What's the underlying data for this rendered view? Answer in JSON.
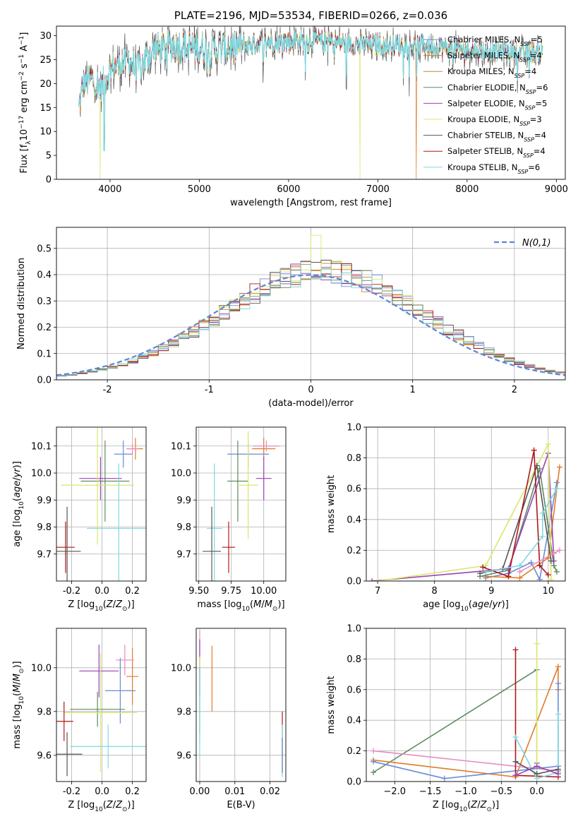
{
  "colors": {
    "Chabrier MILES": "#6a8bd6",
    "Salpeter MILES": "#e07b2a",
    "Kroupa MILES": "#b08c3a",
    "Chabrier ELODIE": "#5f8a62",
    "Salpeter ELODIE": "#9a42b8",
    "Kroupa ELODIE": "#d8e86a",
    "Chabrier STELIB": "#555555",
    "Salpeter STELIB": "#b01818",
    "Kroupa STELIB": "#7fd9e0",
    "Extra pink": "#e88ac0",
    "Normal": "#5b86d6"
  },
  "chart_data": [
    {
      "id": "spectrum",
      "type": "line",
      "title": "PLATE=2196, MJD=53534, FIBERID=0266, z=0.036",
      "xlabel": "wavelength [Angstrom, rest frame]",
      "ylabel": "Flux [f_λ10^-17 erg cm^-2 s^-1 A^-1]",
      "xlim": [
        3400,
        9100
      ],
      "ylim": [
        0,
        32
      ],
      "xticks": [
        4000,
        5000,
        6000,
        7000,
        8000,
        9000
      ],
      "yticks": [
        0,
        5,
        10,
        15,
        20,
        25,
        30
      ],
      "legend_position": "upper right",
      "series": [
        {
          "name": "Chabrier MILES, N_SSP=5"
        },
        {
          "name": "Salpeter MILES, N_SSP=4"
        },
        {
          "name": "Kroupa MILES, N_SSP=4"
        },
        {
          "name": "Chabrier ELODIE, N_SSP=6"
        },
        {
          "name": "Salpeter ELODIE, N_SSP=5"
        },
        {
          "name": "Kroupa ELODIE, N_SSP=3"
        },
        {
          "name": "Chabrier STELIB, N_SSP=4"
        },
        {
          "name": "Salpeter STELIB, N_SSP=4"
        },
        {
          "name": "Kroupa STELIB, N_SSP=6"
        }
      ],
      "continuum": {
        "x": [
          3650,
          3700,
          3800,
          3900,
          4000,
          4100,
          4200,
          4300,
          4500,
          4700,
          5000,
          5200,
          5500,
          6000,
          6300,
          6600,
          7000,
          7500,
          8000,
          8500,
          8850
        ],
        "y": [
          15,
          20,
          21,
          19,
          23,
          24,
          25,
          23,
          27,
          28,
          27.5,
          27,
          28,
          29,
          29,
          28.5,
          28,
          28,
          27,
          26.5,
          26.5
        ]
      },
      "dropouts": [
        {
          "x": 3890,
          "y": 0,
          "series": "Kroupa ELODIE"
        },
        {
          "x": 3935,
          "y": 6
        },
        {
          "x": 6800,
          "y": 0,
          "series": "Kroupa ELODIE"
        },
        {
          "x": 7430,
          "y": 0,
          "series": "Salpeter MILES"
        }
      ]
    },
    {
      "id": "residuals",
      "type": "histogram",
      "xlabel": "(data-model)/error",
      "ylabel": "Normed distribution",
      "xlim": [
        -2.5,
        2.5
      ],
      "ylim": [
        0,
        0.58
      ],
      "xticks": [
        -2,
        -1,
        0,
        1,
        2
      ],
      "yticks": [
        0,
        0.1,
        0.2,
        0.3,
        0.4,
        0.5
      ],
      "grid": true,
      "legend_position": "upper right",
      "normal_curve_label": "N(0,1)",
      "bin_width": 0.1,
      "bin_start": -2.5,
      "typical_peak": 0.42,
      "max_bin": {
        "x": 0.0,
        "y": 0.55,
        "series": "Kroupa ELODIE"
      }
    },
    {
      "id": "age_vs_Z",
      "type": "errorbar",
      "xlabel": "Z [log10(Z/Z⊙)]",
      "ylabel": "age  [log10(age/yr)]",
      "xlim": [
        -0.3,
        0.29
      ],
      "ylim": [
        9.6,
        10.17
      ],
      "xticks": [
        -0.2,
        0.0,
        0.2
      ],
      "yticks": [
        9.7,
        9.8,
        9.9,
        10.0,
        10.1
      ],
      "grid": true,
      "points": [
        {
          "series": "Salpeter MILES",
          "x": 0.22,
          "xerr": 0.05,
          "y": 10.09,
          "yerr": 0.04
        },
        {
          "series": "Extra pink",
          "x": 0.2,
          "xerr": 0.04,
          "y": 10.09,
          "yerr": 0.02
        },
        {
          "series": "Chabrier MILES",
          "x": 0.14,
          "xerr": 0.06,
          "y": 10.07,
          "yerr": 0.05
        },
        {
          "series": "Salpeter ELODIE",
          "x": -0.01,
          "xerr": 0.14,
          "y": 9.98,
          "yerr": 0.08
        },
        {
          "series": "Chabrier ELODIE",
          "x": 0.02,
          "xerr": 0.16,
          "y": 9.97,
          "yerr": 0.15
        },
        {
          "series": "Kroupa ELODIE",
          "x": -0.03,
          "xerr": 0.24,
          "y": 9.955,
          "yerr": 0.22
        },
        {
          "series": "Kroupa STELIB",
          "x": 0.11,
          "xerr": 0.21,
          "y": 9.795,
          "yerr": 0.24
        },
        {
          "series": "Salpeter STELIB",
          "x": -0.24,
          "xerr": 0.06,
          "y": 9.725,
          "yerr": 0.095
        },
        {
          "series": "Chabrier STELIB",
          "x": -0.23,
          "xerr": 0.09,
          "y": 9.71,
          "yerr": 0.165
        }
      ]
    },
    {
      "id": "age_vs_mass",
      "type": "errorbar",
      "xlabel": "mass [log10(M/M⊙)]",
      "ylabel": "",
      "xlim": [
        9.48,
        10.17
      ],
      "ylim": [
        9.6,
        10.17
      ],
      "xticks": [
        9.5,
        9.75,
        10.0
      ],
      "yticks": [
        9.7,
        9.8,
        9.9,
        10.0,
        10.1
      ],
      "grid": true,
      "points": [
        {
          "series": "Salpeter MILES",
          "x": 10.0,
          "xerr": 0.09,
          "y": 10.09,
          "yerr": 0.04
        },
        {
          "series": "Extra pink",
          "x": 10.02,
          "xerr": 0.1,
          "y": 10.1,
          "yerr": 0.02
        },
        {
          "series": "Chabrier MILES",
          "x": 9.88,
          "xerr": 0.16,
          "y": 10.07,
          "yerr": 0.05
        },
        {
          "series": "Salpeter ELODIE",
          "x": 10.0,
          "xerr": 0.06,
          "y": 9.98,
          "yerr": 0.08
        },
        {
          "series": "Chabrier ELODIE",
          "x": 9.8,
          "xerr": 0.08,
          "y": 9.97,
          "yerr": 0.15
        },
        {
          "series": "Kroupa ELODIE",
          "x": 9.88,
          "xerr": 0.08,
          "y": 9.955,
          "yerr": 0.2
        },
        {
          "series": "Kroupa STELIB",
          "x": 9.62,
          "xerr": 0.06,
          "y": 9.795,
          "yerr": 0.24
        },
        {
          "series": "Salpeter STELIB",
          "x": 9.73,
          "xerr": 0.05,
          "y": 9.725,
          "yerr": 0.095
        },
        {
          "series": "Chabrier STELIB",
          "x": 9.6,
          "xerr": 0.07,
          "y": 9.71,
          "yerr": 0.165
        }
      ]
    },
    {
      "id": "weight_vs_age",
      "type": "line",
      "xlabel": "age  [log10(age/yr)]",
      "ylabel": "mass weight",
      "xlim": [
        6.8,
        10.3
      ],
      "ylim": [
        0,
        1
      ],
      "xticks": [
        7,
        8,
        9,
        10
      ],
      "yticks": [
        0,
        0.2,
        0.4,
        0.6,
        0.8,
        1.0
      ],
      "grid": true,
      "series": [
        {
          "series": "Chabrier MILES",
          "x": [
            8.9,
            9.3,
            9.7,
            9.85,
            10.15
          ],
          "y": [
            0.02,
            0.05,
            0.12,
            0.01,
            0.64
          ]
        },
        {
          "series": "Salpeter MILES",
          "x": [
            8.9,
            9.5,
            10.0,
            10.2
          ],
          "y": [
            0.03,
            0.02,
            0.15,
            0.74
          ]
        },
        {
          "series": "Chabrier ELODIE",
          "x": [
            8.8,
            9.3,
            9.85,
            10.1,
            10.15
          ],
          "y": [
            0.03,
            0.07,
            0.73,
            0.1,
            0.06
          ]
        },
        {
          "series": "Salpeter ELODIE",
          "x": [
            6.9,
            9.3,
            10.0,
            10.1
          ],
          "y": [
            0.0,
            0.08,
            0.83,
            0.13
          ]
        },
        {
          "series": "Kroupa ELODIE",
          "x": [
            7.0,
            8.9,
            10.0,
            10.05
          ],
          "y": [
            0.0,
            0.1,
            0.89,
            0.01
          ]
        },
        {
          "series": "Chabrier STELIB",
          "x": [
            8.8,
            9.2,
            9.8,
            10.05
          ],
          "y": [
            0.05,
            0.08,
            0.75,
            0.13
          ]
        },
        {
          "series": "Salpeter STELIB",
          "x": [
            8.85,
            9.3,
            9.75,
            9.85,
            10.0
          ],
          "y": [
            0.09,
            0.03,
            0.85,
            0.1,
            0.04
          ]
        },
        {
          "series": "Kroupa STELIB",
          "x": [
            8.9,
            9.5,
            9.9,
            9.9,
            10.15
          ],
          "y": [
            0.06,
            0.1,
            0.29,
            0.44,
            0.6
          ]
        },
        {
          "series": "Extra pink",
          "x": [
            9.5,
            10.1,
            10.2
          ],
          "y": [
            0.06,
            0.18,
            0.2
          ]
        }
      ]
    },
    {
      "id": "mass_vs_Z",
      "type": "errorbar",
      "xlabel": "Z [log10(Z/Z⊙)]",
      "ylabel": "mass [log10(M/M⊙)]",
      "xlim": [
        -0.3,
        0.29
      ],
      "ylim": [
        9.48,
        10.18
      ],
      "xticks": [
        -0.2,
        0.0,
        0.2
      ],
      "yticks": [
        9.6,
        9.8,
        10.0
      ],
      "grid": true,
      "points": [
        {
          "series": "Salpeter MILES",
          "x": 0.2,
          "xerr": 0.04,
          "y": 9.96,
          "yerr": 0.13
        },
        {
          "series": "Extra pink",
          "x": 0.15,
          "xerr": 0.06,
          "y": 10.035,
          "yerr": 0.07
        },
        {
          "series": "Chabrier MILES",
          "x": 0.12,
          "xerr": 0.1,
          "y": 9.895,
          "yerr": 0.15
        },
        {
          "series": "Salpeter ELODIE",
          "x": -0.02,
          "xerr": 0.13,
          "y": 9.985,
          "yerr": 0.12
        },
        {
          "series": "Chabrier ELODIE",
          "x": -0.03,
          "xerr": 0.18,
          "y": 9.81,
          "yerr": 0.08
        },
        {
          "series": "Kroupa ELODIE",
          "x": -0.01,
          "xerr": 0.24,
          "y": 9.795,
          "yerr": 0.27
        },
        {
          "series": "Kroupa STELIB",
          "x": 0.04,
          "xerr": 0.25,
          "y": 9.64,
          "yerr": 0.1
        },
        {
          "series": "Salpeter STELIB",
          "x": -0.25,
          "xerr": 0.06,
          "y": 9.755,
          "yerr": 0.09
        },
        {
          "series": "Chabrier STELIB",
          "x": -0.23,
          "xerr": 0.1,
          "y": 9.605,
          "yerr": 0.1
        }
      ]
    },
    {
      "id": "mass_vs_ebv",
      "type": "errorbar",
      "xlabel": "E(B-V)",
      "ylabel": "",
      "xlim": [
        -0.001,
        0.0245
      ],
      "ylim": [
        9.48,
        10.18
      ],
      "xticks": [
        0.0,
        0.01,
        0.02
      ],
      "yticks": [
        9.6,
        9.8,
        10.0
      ],
      "grid": true,
      "points": [
        {
          "series": "Extra pink",
          "x": 0.0,
          "y": 10.07,
          "yerr": 0.1
        },
        {
          "series": "Salpeter ELODIE",
          "x": 0.0,
          "y": 10.0,
          "yerr": 0.13
        },
        {
          "series": "Kroupa ELODIE",
          "x": 0.0,
          "y": 9.85,
          "yerr": 0.2
        },
        {
          "series": "Chabrier ELODIE",
          "x": 0.0,
          "y": 9.85,
          "yerr": 0.15
        },
        {
          "series": "Kroupa STELIB",
          "x": 0.0,
          "y": 9.8,
          "yerr": 0.2
        },
        {
          "series": "Salpeter MILES",
          "x": 0.0035,
          "y": 9.95,
          "yerr": 0.15
        },
        {
          "series": "Salpeter STELIB",
          "x": 0.0235,
          "y": 9.66,
          "yerr": 0.14
        },
        {
          "series": "Kroupa STELIB",
          "x": 0.0235,
          "y": 9.62,
          "yerr": 0.12
        },
        {
          "series": "Chabrier MILES",
          "x": 0.0235,
          "y": 9.6,
          "yerr": 0.08
        }
      ]
    },
    {
      "id": "weight_vs_Z",
      "type": "line",
      "xlabel": "Z [log10(Z/Z⊙)]",
      "ylabel": "mass weight",
      "xlim": [
        -2.4,
        0.4
      ],
      "ylim": [
        0,
        1
      ],
      "xticks": [
        -2.0,
        -1.5,
        -1.0,
        -0.5,
        0.0
      ],
      "yticks": [
        0,
        0.2,
        0.4,
        0.6,
        0.8,
        1.0
      ],
      "grid": true,
      "series": [
        {
          "series": "Chabrier ELODIE",
          "x": [
            -2.3,
            0.0,
            0.0
          ],
          "y": [
            0.06,
            0.73,
            0.12
          ]
        },
        {
          "series": "Salpeter MILES",
          "x": [
            -2.3,
            -0.3,
            0.3,
            0.3
          ],
          "y": [
            0.14,
            0.03,
            0.75,
            0.6
          ]
        },
        {
          "series": "Extra pink",
          "x": [
            -2.3,
            0.3,
            0.3
          ],
          "y": [
            0.2,
            0.07,
            0.1
          ]
        },
        {
          "series": "Chabrier MILES",
          "x": [
            -2.3,
            -1.3,
            0.3,
            0.3
          ],
          "y": [
            0.13,
            0.02,
            0.1,
            0.64
          ]
        },
        {
          "series": "Kroupa ELODIE",
          "x": [
            0.0,
            0.0
          ],
          "y": [
            0.9,
            0.02
          ]
        },
        {
          "series": "Salpeter STELIB",
          "x": [
            -0.3,
            -0.3,
            0.3
          ],
          "y": [
            0.86,
            0.04,
            0.03
          ]
        },
        {
          "series": "Kroupa STELIB",
          "x": [
            -0.3,
            0.0,
            0.3,
            0.3
          ],
          "y": [
            0.29,
            0.02,
            0.06,
            0.44
          ]
        },
        {
          "series": "Chabrier STELIB",
          "x": [
            -0.3,
            0.0,
            0.3
          ],
          "y": [
            0.13,
            0.05,
            0.08
          ]
        },
        {
          "series": "Salpeter ELODIE",
          "x": [
            -0.3,
            0.0,
            0.3
          ],
          "y": [
            0.04,
            0.1,
            0.05
          ]
        }
      ]
    }
  ]
}
